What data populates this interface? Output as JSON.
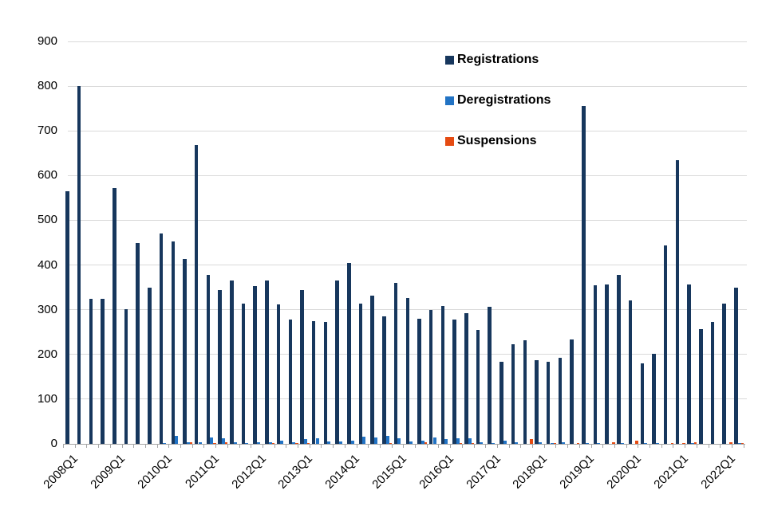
{
  "chart_data": {
    "type": "bar",
    "title": "",
    "xlabel": "",
    "ylabel": "",
    "grid": "horizontal",
    "legend_position": "inside-top-right",
    "categories": [
      "2008Q1",
      "2008Q2",
      "2008Q3",
      "2008Q4",
      "2009Q1",
      "2009Q2",
      "2009Q3",
      "2009Q4",
      "2010Q1",
      "2010Q2",
      "2010Q3",
      "2010Q4",
      "2011Q1",
      "2011Q2",
      "2011Q3",
      "2011Q4",
      "2012Q1",
      "2012Q2",
      "2012Q3",
      "2012Q4",
      "2013Q1",
      "2013Q2",
      "2013Q3",
      "2013Q4",
      "2014Q1",
      "2014Q2",
      "2014Q3",
      "2014Q4",
      "2015Q1",
      "2015Q2",
      "2015Q3",
      "2015Q4",
      "2016Q1",
      "2016Q2",
      "2016Q3",
      "2016Q4",
      "2017Q1",
      "2017Q2",
      "2017Q3",
      "2017Q4",
      "2018Q1",
      "2018Q2",
      "2018Q3",
      "2018Q4",
      "2019Q1",
      "2019Q2",
      "2019Q3",
      "2019Q4",
      "2020Q1",
      "2020Q2",
      "2020Q3",
      "2020Q4",
      "2021Q1",
      "2021Q2",
      "2021Q3",
      "2021Q4",
      "2022Q1",
      "2022Q2"
    ],
    "x_tick_labels": [
      "2008Q1",
      "2009Q1",
      "2010Q1",
      "2011Q1",
      "2012Q1",
      "2013Q1",
      "2014Q1",
      "2015Q1",
      "2016Q1",
      "2017Q1",
      "2018Q1",
      "2019Q1",
      "2020Q1",
      "2021Q1",
      "2022Q1"
    ],
    "series": [
      {
        "name": "Registrations",
        "color": "#17375D",
        "values": [
          565,
          800,
          325,
          325,
          572,
          302,
          450,
          350,
          470,
          452,
          414,
          668,
          378,
          344,
          366,
          314,
          353,
          366,
          312,
          278,
          344,
          274,
          273,
          366,
          404,
          314,
          332,
          286,
          360,
          327,
          280,
          300,
          308,
          278,
          293,
          255,
          307,
          184,
          222,
          231,
          188,
          184,
          193,
          234,
          755,
          355,
          357,
          377,
          320,
          180,
          202,
          443,
          634,
          357,
          256,
          272,
          314,
          350
        ]
      },
      {
        "name": "Deregistrations",
        "color": "#2273C4",
        "values": [
          0,
          0,
          0,
          0,
          0,
          0,
          0,
          0,
          2,
          18,
          3,
          4,
          15,
          12,
          3,
          2,
          3,
          3,
          8,
          4,
          10,
          12,
          5,
          6,
          7,
          16,
          15,
          18,
          12,
          5,
          8,
          15,
          10,
          12,
          13,
          4,
          2,
          8,
          4,
          0,
          3,
          1,
          3,
          0,
          2,
          2,
          0,
          2,
          0,
          1,
          1,
          0,
          0,
          1,
          0,
          0,
          0,
          2
        ]
      },
      {
        "name": "Suspensions",
        "color": "#E54B12",
        "values": [
          0,
          0,
          0,
          0,
          0,
          0,
          0,
          0,
          0,
          0,
          3,
          0,
          2,
          3,
          0,
          0,
          0,
          2,
          0,
          2,
          2,
          0,
          0,
          0,
          0,
          0,
          0,
          2,
          0,
          0,
          3,
          0,
          0,
          2,
          2,
          0,
          0,
          0,
          0,
          10,
          0,
          1,
          0,
          2,
          0,
          0,
          3,
          0,
          8,
          0,
          0,
          1,
          2,
          4,
          0,
          0,
          4,
          2
        ]
      }
    ],
    "y_axis": {
      "min": 0,
      "max": 900,
      "step": 100,
      "tick_labels": [
        "0",
        "100",
        "200",
        "300",
        "400",
        "500",
        "600",
        "700",
        "800",
        "900"
      ]
    },
    "colors": {
      "background": "#FFFFFF",
      "gridline": "#D9D9D9",
      "axis_line": "#A6A6A6",
      "text": "#000000"
    }
  }
}
